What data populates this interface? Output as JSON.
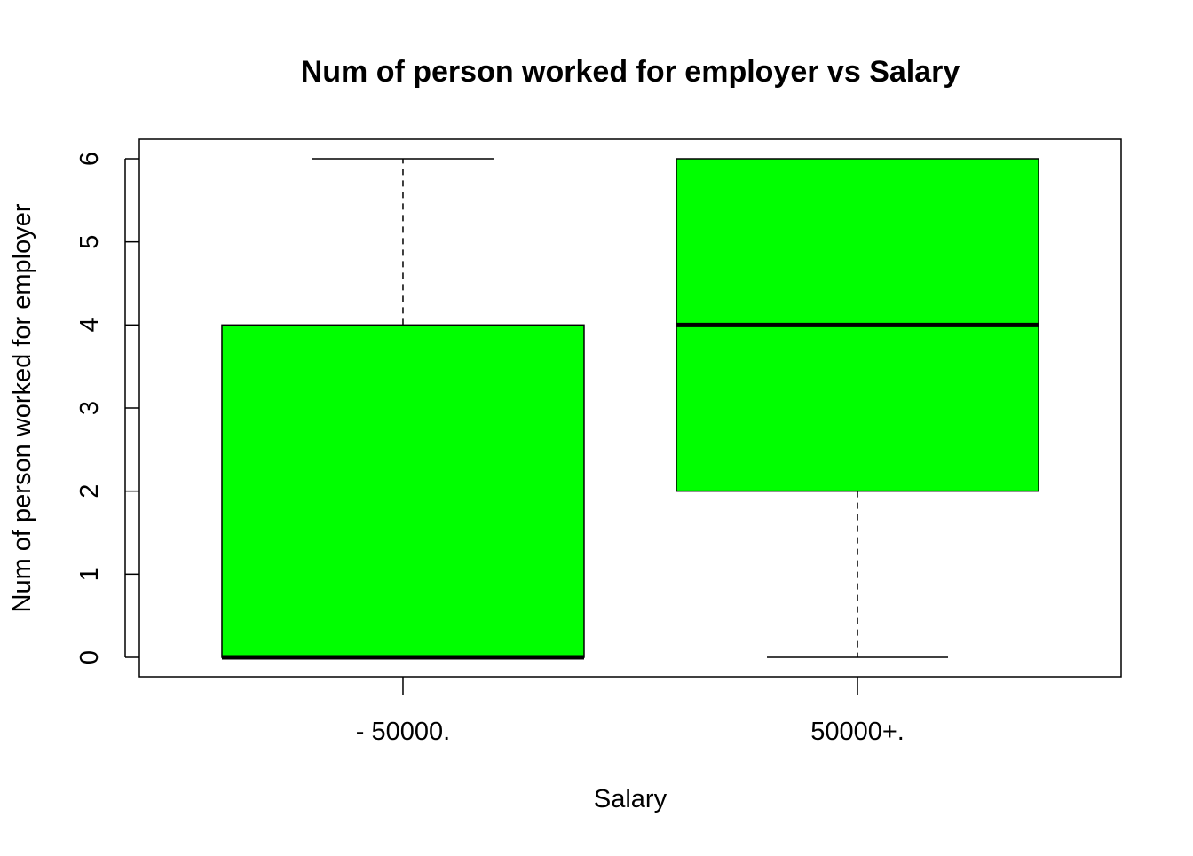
{
  "chart_data": {
    "type": "box",
    "title": "Num of person worked for employer vs Salary",
    "xlabel": "Salary",
    "ylabel": "Num of person worked for employer",
    "categories": [
      "- 50000.",
      "50000+."
    ],
    "boxes": [
      {
        "category": "- 50000.",
        "min": 0,
        "q1": 0,
        "median": 0,
        "q3": 4,
        "max": 6
      },
      {
        "category": "50000+.",
        "min": 0,
        "q1": 2,
        "median": 4,
        "q3": 6,
        "max": 6
      }
    ],
    "yticks": [
      0,
      1,
      2,
      3,
      4,
      5,
      6
    ],
    "ylim": [
      -0.24,
      6.24
    ],
    "grid": false,
    "legend": "none",
    "box_color": "#00FF00",
    "line_color": "#000000"
  }
}
